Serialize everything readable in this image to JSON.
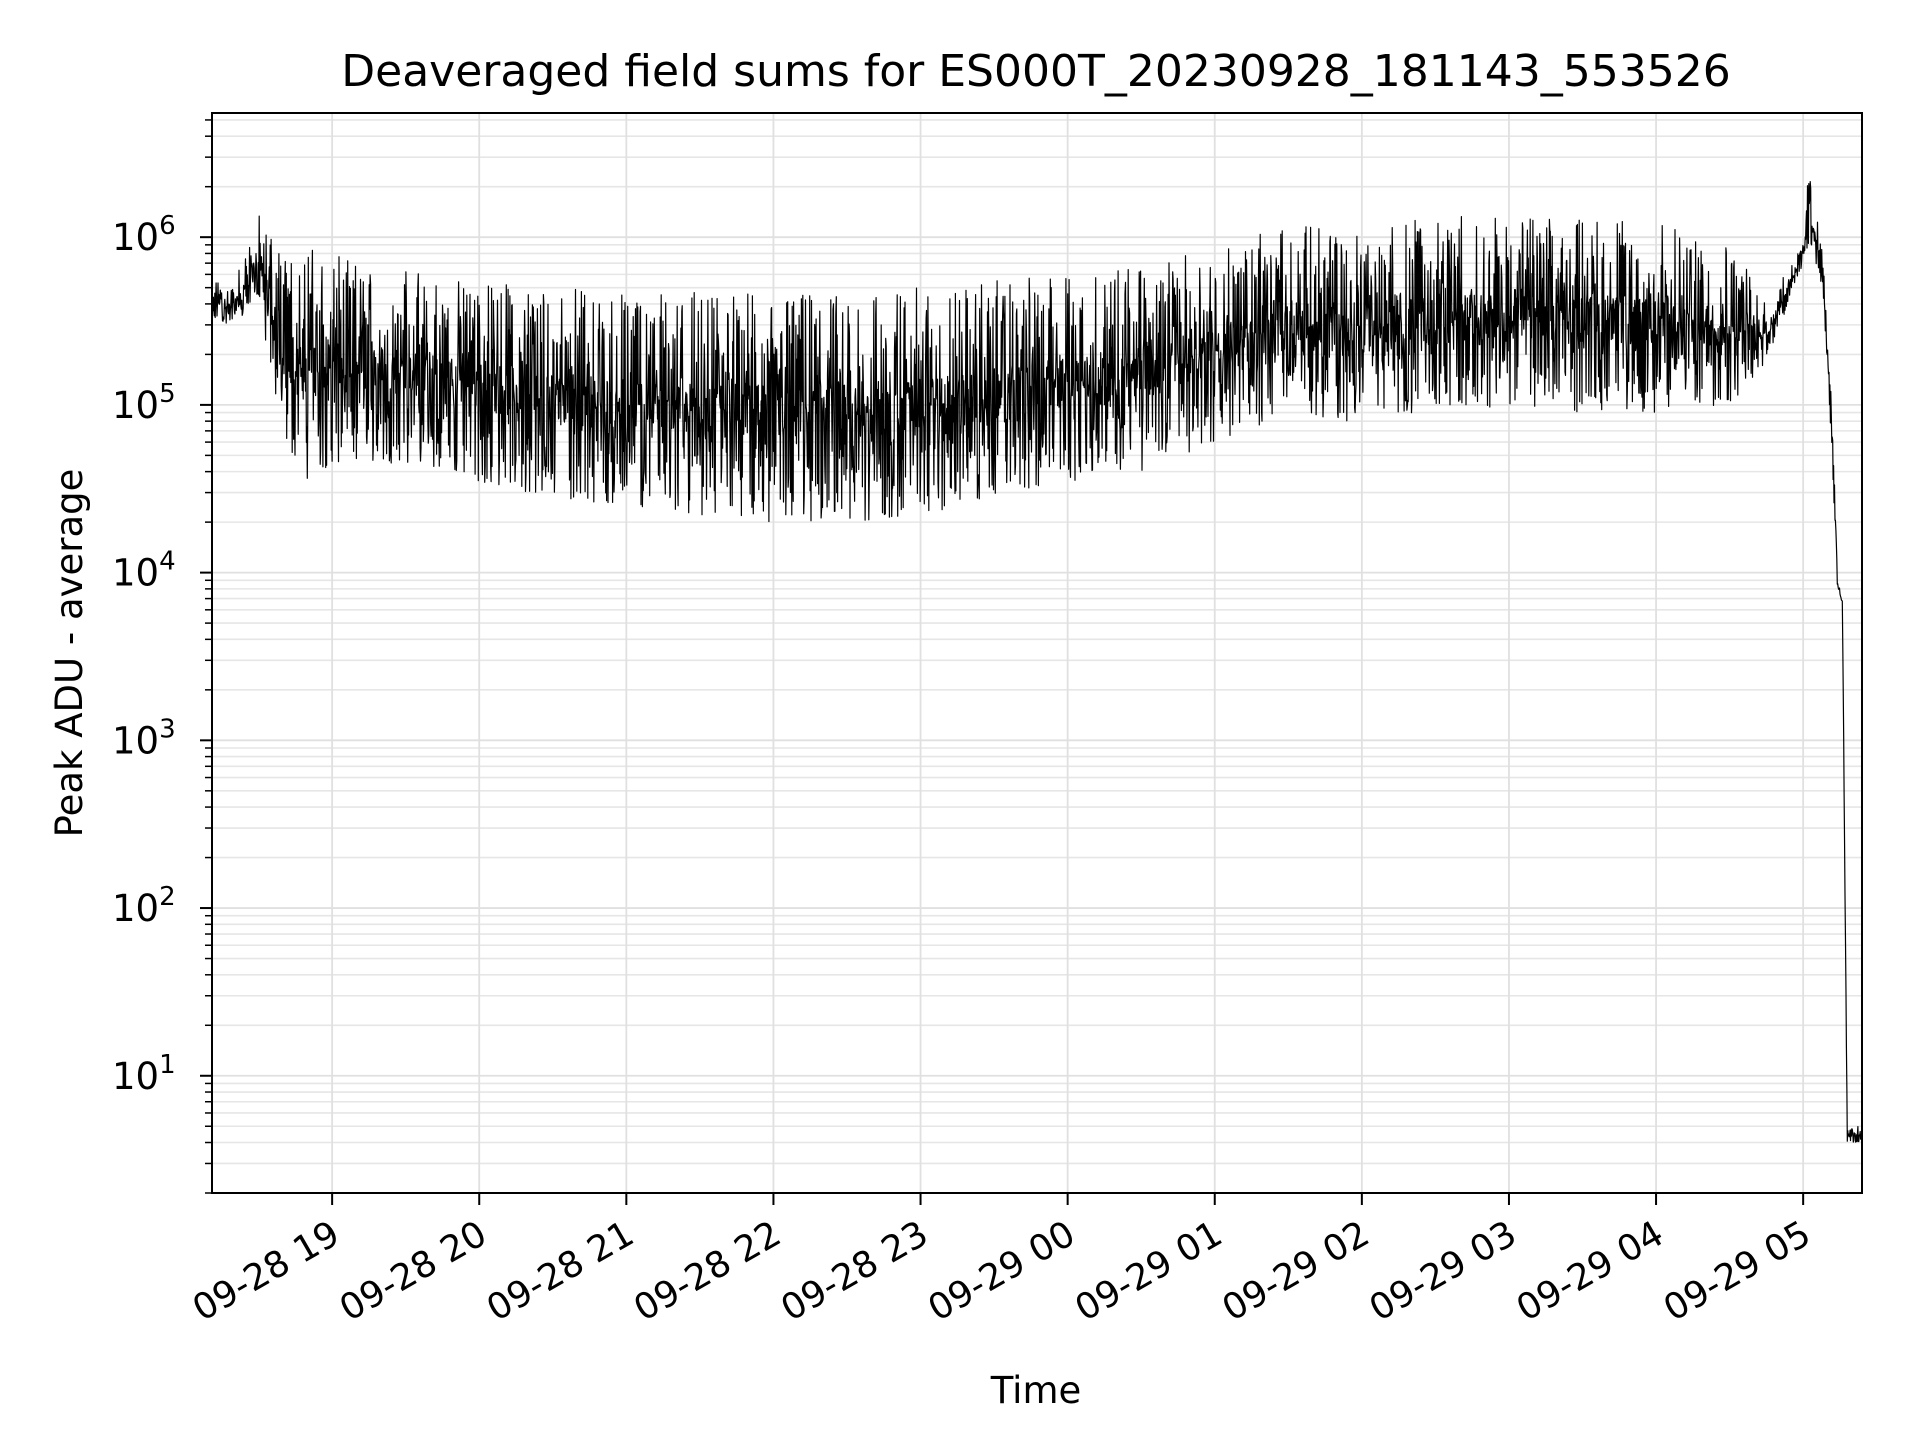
{
  "chart_data": {
    "type": "line",
    "title": "Deaveraged field sums for ES000T_20230928_181143_553526",
    "xlabel": "Time",
    "ylabel": "Peak ADU - average",
    "yscale": "log",
    "grid": true,
    "x_unit": "hour",
    "x_tick_labels": [
      "09-28 19",
      "09-28 20",
      "09-28 21",
      "09-28 22",
      "09-28 23",
      "09-29 00",
      "09-29 01",
      "09-29 02",
      "09-29 03",
      "09-29 04",
      "09-29 05"
    ],
    "y_tick_labels": [
      {
        "base": "10",
        "exp": "1"
      },
      {
        "base": "10",
        "exp": "2"
      },
      {
        "base": "10",
        "exp": "3"
      },
      {
        "base": "10",
        "exp": "4"
      },
      {
        "base": "10",
        "exp": "5"
      },
      {
        "base": "10",
        "exp": "6"
      }
    ],
    "ylim": [
      2,
      5500000
    ],
    "xlim_hours": [
      "09-28 18:11",
      "09-29 05:24"
    ],
    "line_color": "#000000",
    "series": [
      {
        "shape_note": "dense oscillation between a lower envelope (low) and upper envelope (high)",
        "points": [
          {
            "x": "09-28 18:11",
            "low": 320000,
            "high": 560000
          },
          {
            "x": "09-28 18:20",
            "low": 300000,
            "high": 520000
          },
          {
            "x": "09-28 18:30",
            "low": 400000,
            "high": 1400000
          },
          {
            "x": "09-28 18:40",
            "low": 60000,
            "high": 900000
          },
          {
            "x": "09-28 18:50",
            "low": 35000,
            "high": 900000
          },
          {
            "x": "09-28 19:00",
            "low": 45000,
            "high": 780000
          },
          {
            "x": "09-28 19:30",
            "low": 45000,
            "high": 650000
          },
          {
            "x": "09-28 20:00",
            "low": 35000,
            "high": 550000
          },
          {
            "x": "09-28 20:30",
            "low": 28000,
            "high": 500000
          },
          {
            "x": "09-28 21:00",
            "low": 25000,
            "high": 480000
          },
          {
            "x": "09-28 21:30",
            "low": 22000,
            "high": 470000
          },
          {
            "x": "09-28 22:00",
            "low": 20000,
            "high": 460000
          },
          {
            "x": "09-28 22:30",
            "low": 20000,
            "high": 480000
          },
          {
            "x": "09-28 23:00",
            "low": 22000,
            "high": 500000
          },
          {
            "x": "09-28 23:30",
            "low": 28000,
            "high": 550000
          },
          {
            "x": "09-29 00:00",
            "low": 35000,
            "high": 600000
          },
          {
            "x": "09-29 00:30",
            "low": 40000,
            "high": 700000
          },
          {
            "x": "09-29 01:00",
            "low": 60000,
            "high": 850000
          },
          {
            "x": "09-29 01:30",
            "low": 80000,
            "high": 1200000
          },
          {
            "x": "09-29 02:00",
            "low": 80000,
            "high": 1200000
          },
          {
            "x": "09-29 02:30",
            "low": 90000,
            "high": 1400000
          },
          {
            "x": "09-29 03:00",
            "low": 95000,
            "high": 1300000
          },
          {
            "x": "09-29 03:30",
            "low": 90000,
            "high": 1300000
          },
          {
            "x": "09-29 04:00",
            "low": 90000,
            "high": 1200000
          },
          {
            "x": "09-29 04:30",
            "low": 100000,
            "high": 1000000
          },
          {
            "x": "09-29 04:45",
            "low": 180000,
            "high": 400000
          },
          {
            "x": "09-29 05:00",
            "low": 700000,
            "high": 900000
          },
          {
            "x": "09-29 05:02",
            "low": 900000,
            "high": 2700000
          },
          {
            "x": "09-29 05:08",
            "low": 500000,
            "high": 800000
          },
          {
            "x": "09-29 05:12",
            "low": 30000,
            "high": 80000
          },
          {
            "x": "09-29 05:14",
            "low": 8000,
            "high": 10000
          },
          {
            "x": "09-29 05:16",
            "low": 6000,
            "high": 7000
          },
          {
            "x": "09-29 05:18",
            "low": 4,
            "high": 5
          },
          {
            "x": "09-29 05:24",
            "low": 4,
            "high": 5
          }
        ]
      }
    ]
  }
}
